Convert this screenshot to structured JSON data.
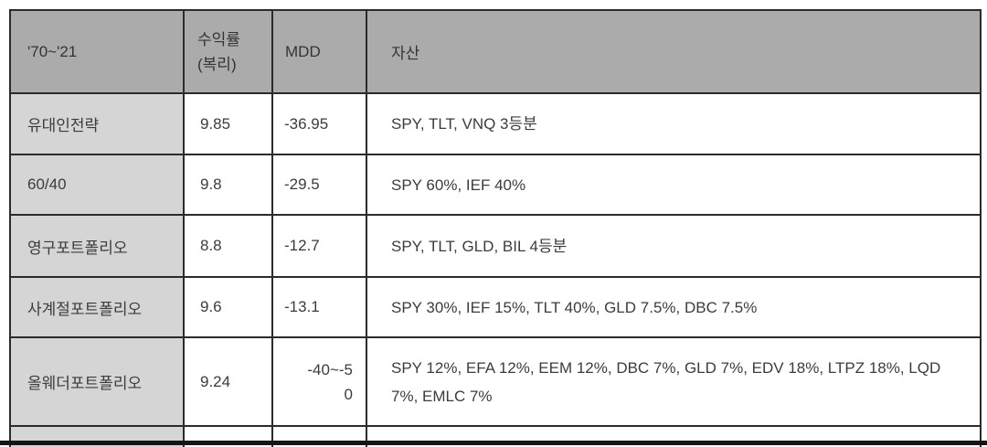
{
  "colors": {
    "header_bg": "#ABABAB",
    "label_column_bg": "#D5D5D5",
    "cell_bg": "#FFFFFF",
    "border": "#2B2B2B",
    "text": "#3C3C3C",
    "bottom_bar": "#151515"
  },
  "table": {
    "header": {
      "period": "'70~'21",
      "return": "수익률\n(복리)",
      "mdd": "MDD",
      "assets": "자산"
    },
    "rows": [
      {
        "name": "유대인전략",
        "return": "9.85",
        "mdd": "-36.95",
        "assets": "SPY, TLT, VNQ 3등분"
      },
      {
        "name": "60/40",
        "return": "9.8",
        "mdd": "-29.5",
        "assets": "SPY 60%, IEF 40%"
      },
      {
        "name": "영구포트폴리오",
        "return": "8.8",
        "mdd": "-12.7",
        "assets": "SPY, TLT, GLD, BIL 4등분"
      },
      {
        "name": "사계절포트폴리오",
        "return": "9.6",
        "mdd": "-13.1",
        "assets": "SPY 30%, IEF 15%, TLT 40%, GLD 7.5%, DBC 7.5%"
      },
      {
        "name": "올웨더포트폴리오",
        "return": "9.24",
        "mdd": "-40~-50",
        "assets": "SPY 12%, EFA 12%, EEM 12%, DBC 7%, GLD 7%, EDV 18%, LTPZ 18%, LQD 7%, EMLC 7%"
      }
    ]
  }
}
